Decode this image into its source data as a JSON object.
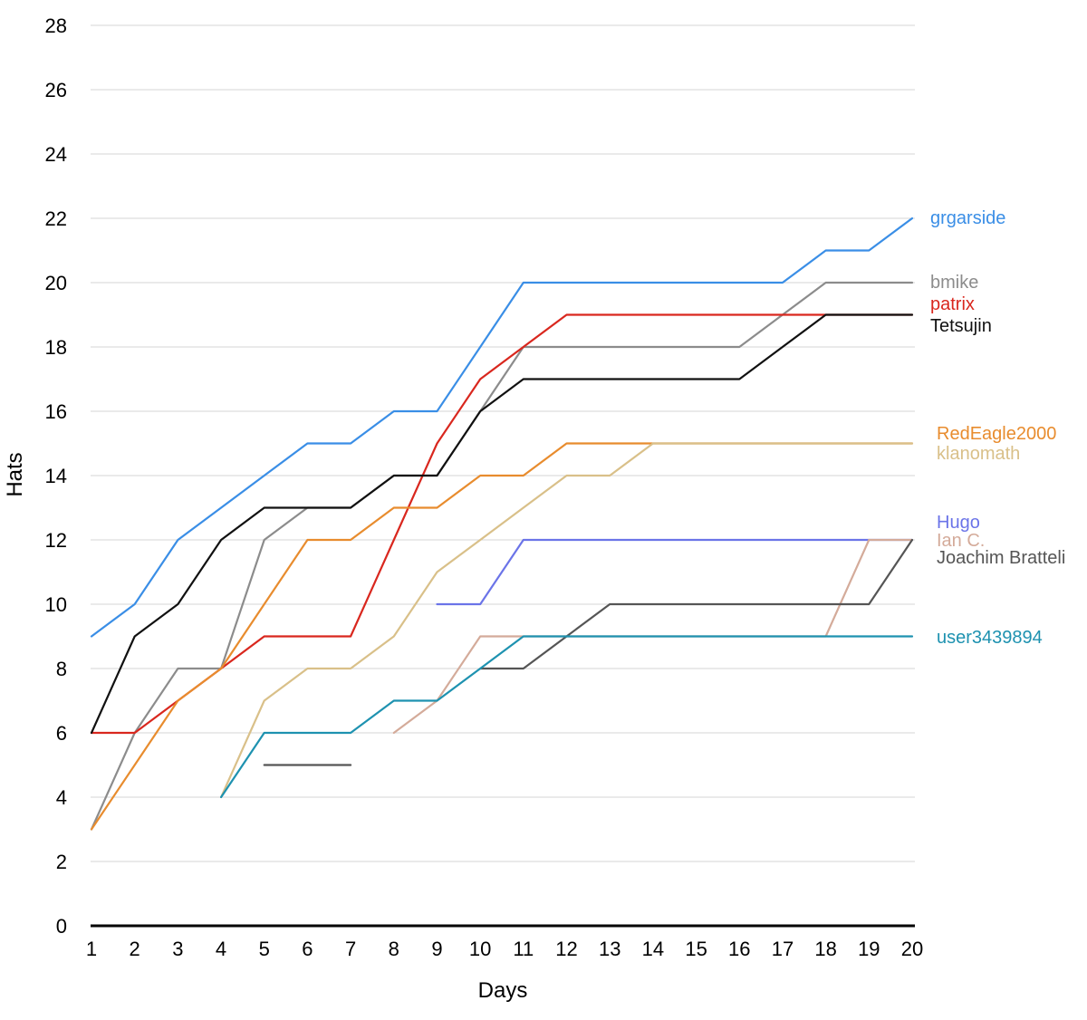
{
  "chart_data": {
    "type": "line",
    "xlabel": "Days",
    "ylabel": "Hats",
    "x": [
      1,
      2,
      3,
      4,
      5,
      6,
      7,
      8,
      9,
      10,
      11,
      12,
      13,
      14,
      15,
      16,
      17,
      18,
      19,
      20
    ],
    "ylim": [
      0,
      28
    ],
    "yticks": [
      0,
      2,
      4,
      6,
      8,
      10,
      12,
      14,
      16,
      18,
      20,
      22,
      24,
      26,
      28
    ],
    "grid": true,
    "series": [
      {
        "name": "grgarside",
        "color": "#3a8ee6",
        "values": [
          9,
          10,
          12,
          13,
          14,
          15,
          15,
          16,
          16,
          18,
          20,
          20,
          20,
          20,
          20,
          20,
          20,
          21,
          21,
          22
        ]
      },
      {
        "name": "bmike",
        "color": "#8c8c8c",
        "values": [
          3,
          6,
          8,
          8,
          12,
          13,
          13,
          14,
          14,
          16,
          18,
          18,
          18,
          18,
          18,
          18,
          19,
          20,
          20,
          20
        ]
      },
      {
        "name": "patrix",
        "color": "#d9271e",
        "values": [
          6,
          6,
          7,
          8,
          9,
          9,
          9,
          12,
          15,
          17,
          18,
          19,
          19,
          19,
          19,
          19,
          19,
          19,
          19,
          19
        ]
      },
      {
        "name": "Tetsujin",
        "color": "#111111",
        "values": [
          6,
          9,
          10,
          12,
          13,
          13,
          13,
          14,
          14,
          16,
          17,
          17,
          17,
          17,
          17,
          17,
          18,
          19,
          19,
          19
        ]
      },
      {
        "name": "RedEagle2000",
        "color": "#e88c2e",
        "values": [
          3,
          5,
          7,
          8,
          10,
          12,
          12,
          13,
          13,
          14,
          14,
          15,
          15,
          15,
          15,
          15,
          15,
          15,
          15,
          15
        ]
      },
      {
        "name": "klanomath",
        "color": "#d9c089",
        "values": [
          null,
          null,
          null,
          4,
          7,
          8,
          8,
          9,
          11,
          12,
          13,
          14,
          14,
          15,
          15,
          15,
          15,
          15,
          15,
          15
        ]
      },
      {
        "name": "Hugo",
        "color": "#6b74e8",
        "values": [
          null,
          null,
          null,
          null,
          null,
          null,
          null,
          null,
          10,
          10,
          12,
          12,
          12,
          12,
          12,
          12,
          12,
          12,
          12,
          12
        ]
      },
      {
        "name": "Ian C.",
        "color": "#d4ab9a",
        "values": [
          null,
          null,
          null,
          null,
          null,
          null,
          null,
          6,
          7,
          9,
          9,
          9,
          9,
          9,
          9,
          9,
          9,
          9,
          12,
          12
        ]
      },
      {
        "name": "Joachim Bratteli",
        "color": "#555555",
        "values": [
          null,
          null,
          null,
          null,
          5,
          5,
          5,
          null,
          null,
          8,
          8,
          9,
          10,
          10,
          10,
          10,
          10,
          10,
          10,
          12
        ]
      },
      {
        "name": "user3439894",
        "color": "#1e92b0",
        "values": [
          null,
          null,
          null,
          4,
          6,
          6,
          6,
          7,
          7,
          8,
          9,
          9,
          9,
          9,
          9,
          9,
          9,
          9,
          9,
          9
        ]
      }
    ],
    "legend_placement": "right, beside line ends"
  }
}
